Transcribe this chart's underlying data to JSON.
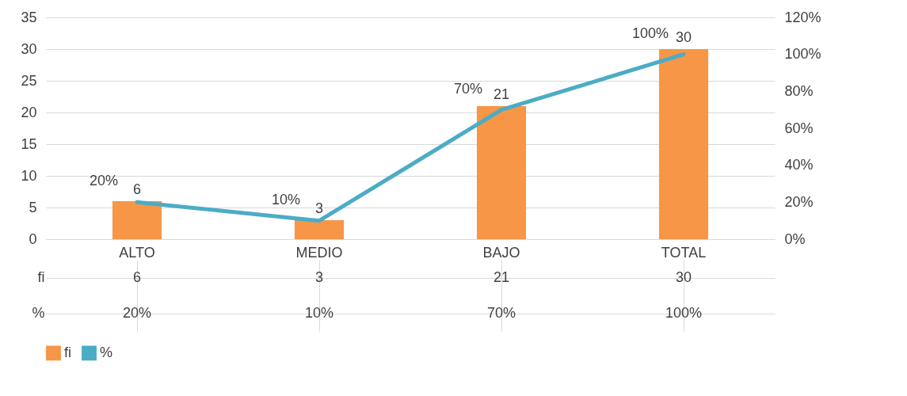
{
  "chart_data": {
    "type": "bar",
    "categories": [
      "ALTO",
      "MEDIO",
      "BAJO",
      "TOTAL"
    ],
    "series": [
      {
        "name": "fi",
        "color": "#f79646",
        "values": [
          6,
          3,
          21,
          30
        ],
        "value_labels": [
          "6",
          "3",
          "21",
          "30"
        ]
      },
      {
        "name": "%",
        "type": "line",
        "axis": "y2",
        "color": "#4bacc6",
        "values": [
          20,
          10,
          70,
          100
        ],
        "value_labels": [
          "20%",
          "10%",
          "70%",
          "100%"
        ]
      }
    ],
    "ylim": [
      0,
      35
    ],
    "yticks": [
      0,
      5,
      10,
      15,
      20,
      25,
      30,
      35
    ],
    "y2lim": [
      0,
      120
    ],
    "y2ticks": [
      {
        "value": 0,
        "label": "0%"
      },
      {
        "value": 20,
        "label": "20%"
      },
      {
        "value": 40,
        "label": "40%"
      },
      {
        "value": 60,
        "label": "60%"
      },
      {
        "value": 80,
        "label": "80%"
      },
      {
        "value": 100,
        "label": "100%"
      },
      {
        "value": 120,
        "label": "120%"
      }
    ],
    "grid": "y",
    "legend": "bottom"
  }
}
